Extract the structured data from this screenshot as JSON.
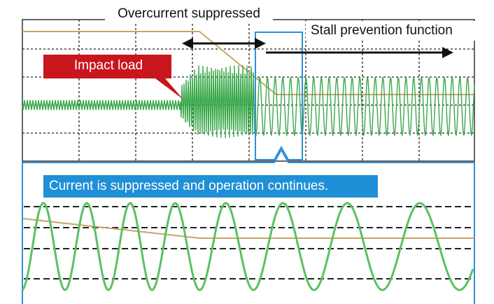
{
  "annotations": {
    "overcurrent": "Overcurrent suppressed",
    "stall": "Stall prevention function",
    "impact": "Impact load",
    "continues": "Current is suppressed and operation continues."
  }
}
